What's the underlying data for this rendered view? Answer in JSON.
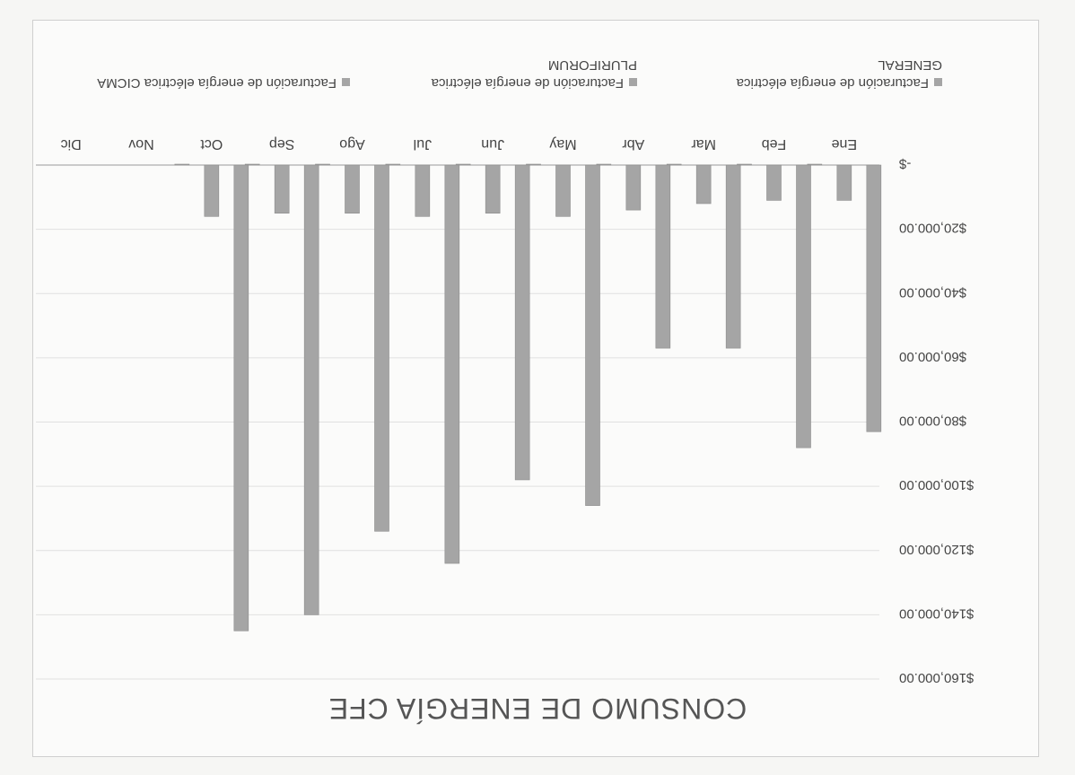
{
  "chart_data": {
    "type": "bar",
    "title": "CONSUMO DE ENERGÍA CFE",
    "xlabel": "",
    "ylabel": "",
    "categories": [
      "Ene",
      "Feb",
      "Mar",
      "Abr",
      "May",
      "Jun",
      "Jul",
      "Ago",
      "Sep",
      "Oct",
      "Nov",
      "Dic"
    ],
    "y_tick_labels": [
      "$160,000.00",
      "$140,000.00",
      "$120,000.00",
      "$100,000.00",
      "$80,000.00",
      "$60,000.00",
      "$40,000.00",
      "$20,000.00",
      "-$"
    ],
    "y_ticks": [
      160000,
      140000,
      120000,
      100000,
      80000,
      60000,
      40000,
      20000,
      0
    ],
    "ylim": [
      0,
      160000
    ],
    "grid": true,
    "legend_position": "bottom",
    "orientation": "rotated-180",
    "series": [
      {
        "name": "Facturación de energía eléctrica GENERAL",
        "values": [
          83000,
          88000,
          57000,
          57000,
          106000,
          98000,
          124000,
          114000,
          140000,
          145000,
          null,
          null
        ]
      },
      {
        "name": "Facturación de energía eléctrica PLURIFORUM",
        "values": [
          11000,
          11000,
          12000,
          14000,
          16000,
          15000,
          16000,
          15000,
          15000,
          16000,
          null,
          null
        ]
      },
      {
        "name": "Facturación de energía eléctrica CICMA",
        "values": [
          0,
          0,
          0,
          0,
          0,
          0,
          0,
          0,
          0,
          0,
          null,
          null
        ]
      }
    ],
    "colors": {
      "bar": "#a5a5a5",
      "bar_stroke": "#8c8c8c",
      "grid": "#e0e0e0",
      "axis": "#9a9a9a"
    }
  }
}
